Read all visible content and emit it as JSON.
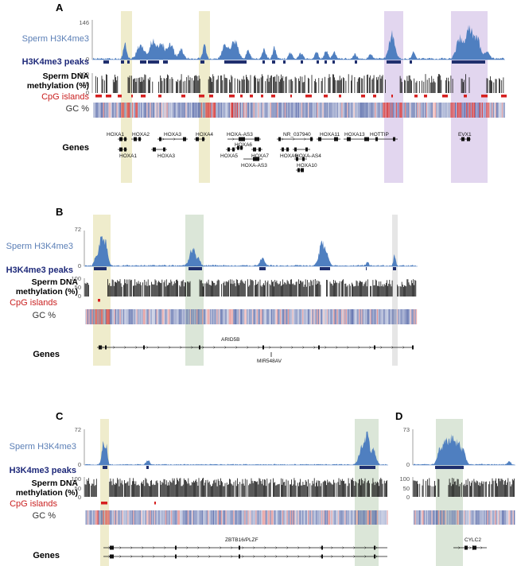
{
  "labels": {
    "h3k4me3": "Sperm H3K4me3",
    "peaks": "H3K4me3 peaks",
    "meth1": "Sperm DNA",
    "meth2": "methylation (%)",
    "cpg": "CpG islands",
    "gc": "GC %",
    "genes": "Genes"
  },
  "panels": {
    "A": {
      "letter": "A",
      "ymax": "146",
      "yzero": "0",
      "meth_ticks": [
        "100",
        "50",
        "0"
      ],
      "genes_top": [
        "HOXA1",
        "HOXA2",
        "HOXA3",
        "HOXA4",
        "HOXA-AS3",
        "NR_037940",
        "HOXA11",
        "HOXA13",
        "HOTTIP",
        "EVX1"
      ],
      "genes_mid": [
        "HOXA6"
      ],
      "genes_bot1": [
        "HOXA1",
        "HOXA3",
        "HOXA5",
        "HOXA7",
        "HOXA9",
        "HOXA-AS4"
      ],
      "genes_bot2": [
        "HOXA-AS3",
        "HOXA10"
      ]
    },
    "B": {
      "letter": "B",
      "ymax": "72",
      "yzero": "0",
      "meth_ticks": [
        "100",
        "50",
        "0"
      ],
      "gene1": "ARID5B",
      "gene2": "MIR548AV"
    },
    "C": {
      "letter": "C",
      "ymax": "72",
      "yzero": "0",
      "meth_ticks": [
        "100",
        "50",
        "0"
      ],
      "gene1": "ZBTB16/PLZF"
    },
    "D": {
      "letter": "D",
      "ymax": "73",
      "yzero": "0",
      "meth_ticks": [
        "100",
        "50",
        "0"
      ],
      "gene1": "CYLC2"
    }
  },
  "colors": {
    "h3": "#4f7fc0",
    "peak": "#1f2f6e",
    "cpg": "#d62020",
    "yellow_hl": "#efeccc",
    "green_hl": "#dbe6d8",
    "purple_hl": "#e2d6ef",
    "grey_hl": "#e6e6e6"
  }
}
